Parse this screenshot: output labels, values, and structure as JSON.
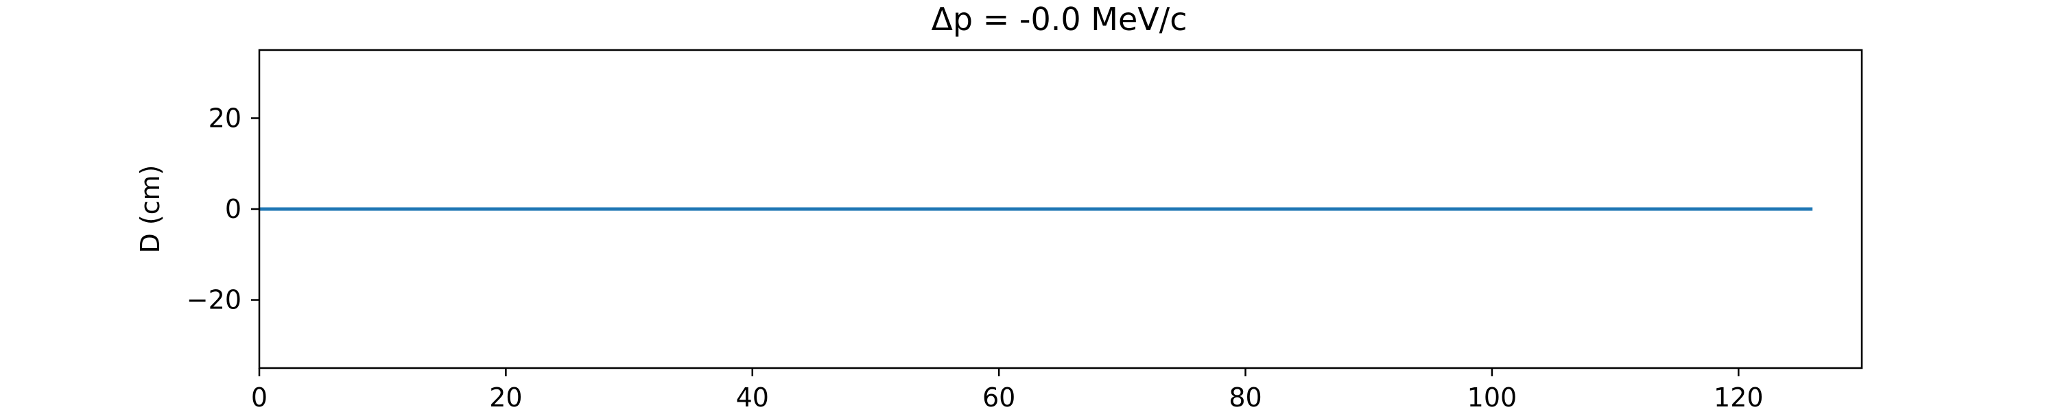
{
  "chart_data": {
    "type": "line",
    "title": "Δp = -0.0 MeV/c",
    "xlabel": "",
    "ylabel": "D (cm)",
    "xlim": [
      0,
      130
    ],
    "ylim": [
      -35,
      35
    ],
    "xticks": [
      0,
      20,
      40,
      60,
      80,
      100,
      120
    ],
    "yticks": [
      -20,
      0,
      20
    ],
    "xtick_labels": [
      "0",
      "20",
      "40",
      "60",
      "80",
      "100",
      "120"
    ],
    "ytick_labels": [
      "−20",
      "0",
      "20"
    ],
    "grid": false,
    "series": [
      {
        "color": "#1f77b4",
        "x": [
          0,
          126
        ],
        "y": [
          0,
          0
        ]
      }
    ]
  }
}
